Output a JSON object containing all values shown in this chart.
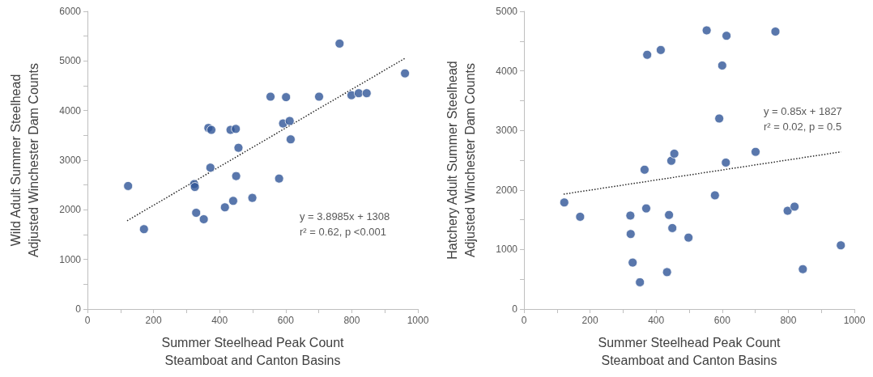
{
  "chart_data": [
    {
      "type": "scatter",
      "xlabel": "Summer Steelhead Peak Count\nSteamboat and Canton Basins",
      "ylabel": "Wild Adult Summer Steelhead\nAdjusted Winchester Dam Counts",
      "xlim": [
        0,
        1000
      ],
      "xticks": [
        0,
        {
          "value": 100,
          "label": null
        },
        200,
        {
          "value": 300,
          "label": null
        },
        400,
        {
          "value": 500,
          "label": null
        },
        600,
        {
          "value": 700,
          "label": null
        },
        800,
        {
          "value": 900,
          "label": null
        },
        1000
      ],
      "ylim": [
        0,
        6000
      ],
      "yticks": [
        0,
        {
          "value": 500,
          "label": null
        },
        1000,
        {
          "value": 1500,
          "label": null
        },
        2000,
        {
          "value": 2500,
          "label": null
        },
        3000,
        {
          "value": 3500,
          "label": null
        },
        4000,
        {
          "value": 4500,
          "label": null
        },
        5000,
        {
          "value": 5500,
          "label": null
        },
        6000
      ],
      "marker": "circle",
      "annotations": [
        "y = 3.8985x + 1308\nr² = 0.62, p <0.001"
      ],
      "series": [
        {
          "color": "#2f5597",
          "x": [
            123,
            171,
            323,
            325,
            329,
            352,
            366,
            375,
            372,
            416,
            433,
            441,
            449,
            450,
            457,
            499,
            554,
            580,
            592,
            601,
            612,
            615,
            701,
            763,
            799,
            821,
            845,
            961
          ],
          "values": [
            2480,
            1610,
            2520,
            2460,
            1940,
            1810,
            3650,
            3610,
            2850,
            2050,
            3610,
            2180,
            3630,
            2680,
            3250,
            2240,
            4280,
            2630,
            3740,
            4270,
            3790,
            3420,
            4280,
            5350,
            4310,
            4350,
            4350,
            4750
          ]
        },
        {
          "type": "line",
          "color": "#262626",
          "line_style": "dotted",
          "marker": "none",
          "x": [
            120,
            960
          ],
          "values": [
            1780,
            5050
          ]
        }
      ]
    },
    {
      "type": "scatter",
      "xlabel": "Summer Steelhead Peak Count\nSteamboat and Canton Basins",
      "ylabel": "Hatchery Adult Summer Steelhead\nAdjusted Winchester Dam Counts",
      "xlim": [
        0,
        1000
      ],
      "xticks": [
        0,
        {
          "value": 100,
          "label": null
        },
        200,
        {
          "value": 300,
          "label": null
        },
        400,
        {
          "value": 500,
          "label": null
        },
        600,
        {
          "value": 700,
          "label": null
        },
        800,
        {
          "value": 900,
          "label": null
        },
        1000
      ],
      "ylim": [
        0,
        5000
      ],
      "yticks": [
        0,
        {
          "value": 500,
          "label": null
        },
        1000,
        {
          "value": 1500,
          "label": null
        },
        2000,
        {
          "value": 2500,
          "label": null
        },
        3000,
        {
          "value": 3500,
          "label": null
        },
        4000,
        {
          "value": 4500,
          "label": null
        },
        5000
      ],
      "marker": "circle",
      "annotations": [
        "y = 0.85x + 1827\nr² = 0.02, p = 0.5"
      ],
      "series": [
        {
          "color": "#2f5597",
          "x": [
            122,
            170,
            322,
            323,
            329,
            351,
            365,
            370,
            373,
            414,
            433,
            439,
            446,
            449,
            455,
            498,
            553,
            578,
            591,
            600,
            611,
            613,
            701,
            761,
            798,
            819,
            844,
            959
          ],
          "values": [
            1790,
            1550,
            1570,
            1260,
            780,
            450,
            2340,
            1690,
            4270,
            4350,
            620,
            1580,
            2490,
            1360,
            2610,
            1200,
            4680,
            1910,
            3200,
            4090,
            2460,
            4590,
            2640,
            4660,
            1650,
            1720,
            670,
            1070
          ]
        },
        {
          "type": "line",
          "color": "#262626",
          "line_style": "dotted",
          "marker": "none",
          "x": [
            120,
            960
          ],
          "values": [
            1930,
            2640
          ]
        }
      ]
    }
  ]
}
